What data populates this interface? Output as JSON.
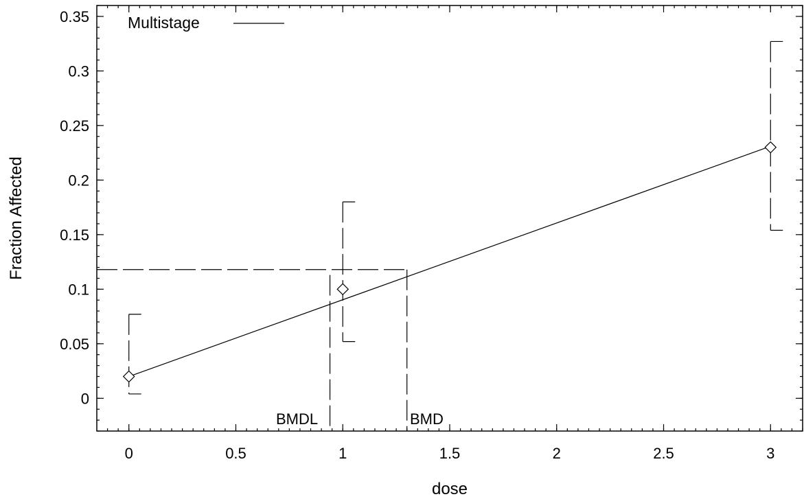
{
  "chart_data": {
    "type": "line",
    "xlabel": "dose",
    "ylabel": "Fraction Affected",
    "xlim": [
      -0.15,
      3.15
    ],
    "ylim": [
      -0.03,
      0.36
    ],
    "xticks": [
      0,
      0.5,
      1,
      1.5,
      2,
      2.5,
      3
    ],
    "xtick_labels": [
      "0",
      "0.5",
      "1",
      "1.5",
      "2",
      "2.5",
      "3"
    ],
    "yticks": [
      0,
      0.05,
      0.1,
      0.15,
      0.2,
      0.25,
      0.3,
      0.35
    ],
    "ytick_labels": [
      "0",
      "0.05",
      "0.1",
      "0.15",
      "0.2",
      "0.25",
      "0.3",
      "0.35"
    ],
    "grid": false,
    "legend": {
      "position": "top-left",
      "entries": [
        {
          "label": "Multistage",
          "style": "solid line"
        }
      ]
    },
    "series": [
      {
        "name": "Multistage",
        "type": "line",
        "x": [
          0,
          3
        ],
        "y": [
          0.02,
          0.231
        ]
      }
    ],
    "observations": {
      "marker": "diamond",
      "x": [
        0,
        1,
        3
      ],
      "y": [
        0.02,
        0.1,
        0.23
      ],
      "lower": [
        0.004,
        0.052,
        0.154
      ],
      "upper": [
        0.077,
        0.18,
        0.327
      ]
    },
    "bmd": {
      "bmr_response": 0.118,
      "bmd": 1.3,
      "bmdl": 0.94,
      "bmd_label": "BMD",
      "bmdl_label": "BMDL"
    }
  }
}
